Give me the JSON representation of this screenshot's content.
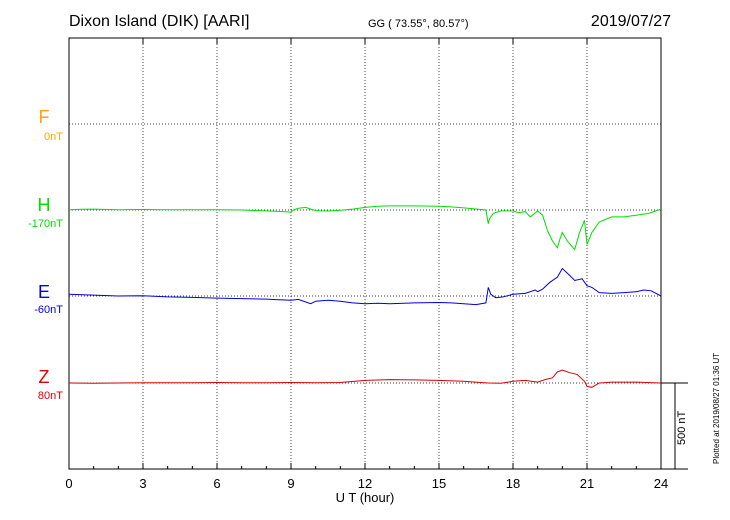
{
  "header": {
    "station": "Dixon Island (DIK)  [AARI]",
    "coords": "GG ( 73.55°,  80.57°)",
    "date": "2019/07/27"
  },
  "footer": {
    "plotted": "Plotted at 2019/08/27 01:36 UT",
    "scale": "500 nT"
  },
  "chart_data": {
    "type": "line",
    "xlabel": "U T (hour)",
    "xlim": [
      0,
      24
    ],
    "xticks": [
      0,
      3,
      6,
      9,
      12,
      15,
      18,
      21,
      24
    ],
    "grid": true,
    "components": [
      {
        "name": "F",
        "baseline": "0nT",
        "color": "#ffa500"
      },
      {
        "name": "H",
        "baseline": "-170nT",
        "color": "#00e000"
      },
      {
        "name": "E",
        "baseline": "-60nT",
        "color": "#0000dd"
      },
      {
        "name": "Z",
        "baseline": "80nT",
        "color": "#dd0000"
      }
    ],
    "series": [
      {
        "name": "H",
        "color": "#00e000",
        "x": [
          0,
          0.5,
          1,
          2,
          3,
          4,
          5,
          6,
          7,
          7.5,
          8,
          8.5,
          9,
          9.1,
          9.3,
          9.6,
          9.8,
          10,
          10.2,
          10.5,
          11,
          11.5,
          12,
          12.5,
          13,
          14,
          15,
          15.5,
          16,
          16.5,
          16.9,
          17.0,
          17.05,
          17.2,
          17.5,
          18,
          18.2,
          18.5,
          18.7,
          19,
          19.2,
          19.4,
          19.6,
          19.8,
          19.9,
          20.0,
          20.2,
          20.5,
          20.7,
          20.9,
          21.0,
          21.2,
          21.5,
          22,
          22.5,
          23,
          23.5,
          24
        ],
        "values": [
          2,
          4,
          5,
          2,
          3,
          2,
          2,
          1,
          0,
          -3,
          -5,
          -8,
          -12,
          0,
          10,
          15,
          5,
          -3,
          -5,
          -6,
          -2,
          5,
          15,
          22,
          24,
          24,
          22,
          18,
          12,
          6,
          0,
          -80,
          -50,
          -20,
          -5,
          -5,
          -15,
          -10,
          -40,
          -5,
          -30,
          -120,
          -180,
          -220,
          -170,
          -130,
          -180,
          -230,
          -130,
          -60,
          -200,
          -130,
          -70,
          -40,
          -40,
          -30,
          -20,
          5
        ]
      },
      {
        "name": "E",
        "color": "#0000dd",
        "x": [
          0,
          1,
          2,
          3,
          4,
          5,
          6,
          7,
          8,
          8.5,
          9,
          9.3,
          9.6,
          9.8,
          10,
          10.5,
          11,
          11.5,
          12,
          12.5,
          13,
          14,
          15,
          15.5,
          16,
          16.5,
          16.9,
          17.0,
          17.1,
          17.3,
          17.6,
          18,
          18.5,
          18.9,
          19.0,
          19.2,
          19.5,
          19.8,
          20.0,
          20.3,
          20.5,
          20.8,
          21.0,
          21.2,
          21.5,
          22,
          22.5,
          23,
          23.3,
          23.6,
          24
        ],
        "values": [
          10,
          5,
          0,
          2,
          -5,
          -8,
          -12,
          -15,
          -18,
          -22,
          -25,
          -20,
          -35,
          -45,
          -30,
          -25,
          -30,
          -40,
          -45,
          -42,
          -45,
          -40,
          -38,
          -40,
          -45,
          -50,
          -40,
          50,
          10,
          -10,
          -5,
          10,
          15,
          35,
          25,
          40,
          80,
          110,
          160,
          120,
          90,
          100,
          60,
          50,
          20,
          15,
          20,
          25,
          35,
          30,
          0
        ]
      },
      {
        "name": "Z",
        "color": "#dd0000",
        "x": [
          0,
          1,
          2,
          3,
          4,
          5,
          6,
          7,
          8,
          9,
          10,
          11,
          12,
          13,
          14,
          15,
          16,
          17,
          17.5,
          18,
          18.5,
          19,
          19.3,
          19.6,
          19.8,
          20.0,
          20.3,
          20.6,
          20.9,
          21.0,
          21.2,
          21.5,
          22,
          23,
          24
        ],
        "values": [
          0,
          -2,
          0,
          2,
          2,
          2,
          3,
          2,
          2,
          3,
          2,
          3,
          15,
          20,
          18,
          15,
          10,
          0,
          -2,
          10,
          15,
          5,
          20,
          30,
          65,
          75,
          60,
          50,
          10,
          -20,
          -25,
          0,
          5,
          5,
          0
        ]
      }
    ]
  }
}
